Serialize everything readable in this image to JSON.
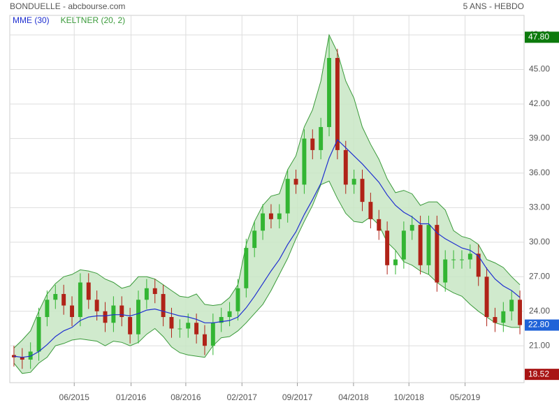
{
  "chart_data": {
    "type": "candlestick",
    "title": "BONDUELLE - abcbourse.com",
    "subtitle": "5 ANS - HEBDO",
    "xlim": [
      -0.5,
      61.5
    ],
    "xticks": [
      {
        "value": 7.27,
        "label": "06/2015"
      },
      {
        "value": 14.12,
        "label": "01/2016"
      },
      {
        "value": 20.72,
        "label": "08/2016"
      },
      {
        "value": 27.49,
        "label": "02/2017"
      },
      {
        "value": 34.17,
        "label": "09/2017"
      },
      {
        "value": 40.94,
        "label": "04/2018"
      },
      {
        "value": 47.62,
        "label": "10/2018"
      },
      {
        "value": 54.39,
        "label": "05/2019"
      }
    ],
    "ylim": [
      17.8,
      49.7
    ],
    "yticks": [
      {
        "value": 21,
        "label": "21.00"
      },
      {
        "value": 24,
        "label": "24.00"
      },
      {
        "value": 27,
        "label": "27.00"
      },
      {
        "value": 30,
        "label": "30.00"
      },
      {
        "value": 33,
        "label": "33.00"
      },
      {
        "value": 36,
        "label": "36.00"
      },
      {
        "value": 39,
        "label": "39.00"
      },
      {
        "value": 42,
        "label": "42.00"
      },
      {
        "value": 45,
        "label": "45.00"
      },
      {
        "value": 48,
        "label": "48.00"
      }
    ],
    "grid": true,
    "up_color": "#33b533",
    "down_color": "#b02318",
    "open": [
      20.2,
      20.0,
      19.8,
      20.5,
      23.5,
      25.0,
      25.5,
      24.5,
      23.5,
      26.5,
      25.0,
      24.0,
      23.0,
      24.5,
      23.5,
      22.0,
      25.0,
      26.0,
      25.5,
      23.5,
      22.5,
      22.5,
      23.0,
      22.0,
      21.0,
      23.0,
      23.5,
      24.0,
      26.0,
      29.5,
      31.0,
      32.5,
      32.0,
      32.5,
      35.5,
      35.0,
      39.0,
      38.0,
      40.0,
      46.0,
      38.0,
      35.0,
      35.5,
      33.5,
      32.0,
      31.0,
      28.0,
      28.5,
      31.0,
      31.5,
      28.0,
      31.5,
      26.5,
      28.5,
      28.5,
      28.5,
      29.0,
      27.0,
      23.5,
      23.0,
      24.0,
      25.0
    ],
    "high": [
      21.0,
      20.8,
      21.3,
      24.3,
      25.8,
      26.3,
      26.3,
      25.3,
      27.3,
      27.3,
      25.8,
      24.8,
      25.3,
      25.3,
      24.3,
      25.8,
      26.8,
      26.8,
      26.3,
      24.3,
      23.3,
      23.8,
      23.8,
      22.8,
      23.8,
      24.3,
      24.8,
      26.8,
      30.3,
      31.8,
      33.3,
      33.3,
      33.3,
      36.3,
      36.3,
      39.8,
      39.8,
      40.8,
      47.8,
      46.8,
      38.8,
      36.3,
      36.3,
      34.3,
      32.8,
      31.8,
      29.3,
      31.8,
      32.3,
      32.3,
      32.3,
      32.3,
      29.3,
      29.3,
      29.3,
      29.8,
      29.8,
      27.8,
      24.3,
      24.8,
      25.8,
      25.8
    ],
    "low": [
      19.2,
      19.0,
      19.0,
      19.7,
      22.7,
      24.2,
      23.7,
      22.7,
      22.7,
      24.2,
      23.2,
      22.2,
      22.2,
      22.7,
      21.2,
      21.2,
      24.2,
      24.7,
      22.7,
      21.7,
      21.7,
      21.7,
      21.2,
      20.2,
      20.2,
      22.2,
      22.7,
      23.2,
      25.2,
      28.7,
      30.2,
      31.2,
      31.2,
      31.7,
      34.2,
      34.2,
      37.2,
      37.2,
      39.2,
      37.2,
      34.2,
      34.2,
      32.7,
      31.2,
      30.2,
      27.2,
      27.2,
      27.7,
      30.2,
      27.2,
      27.2,
      25.7,
      25.7,
      27.7,
      27.7,
      27.7,
      26.2,
      22.7,
      22.2,
      22.2,
      23.2,
      22.0
    ],
    "close": [
      20.0,
      19.8,
      20.5,
      23.5,
      25.0,
      25.5,
      24.5,
      23.5,
      26.5,
      25.0,
      24.0,
      23.0,
      24.5,
      23.5,
      22.0,
      25.0,
      26.0,
      25.5,
      23.5,
      22.5,
      22.5,
      23.0,
      22.0,
      21.0,
      23.0,
      23.5,
      24.0,
      26.0,
      29.5,
      31.0,
      32.5,
      32.0,
      32.5,
      35.5,
      35.0,
      39.0,
      38.0,
      40.0,
      46.0,
      38.0,
      35.0,
      35.5,
      33.5,
      32.0,
      31.0,
      28.0,
      28.5,
      31.0,
      31.5,
      28.0,
      31.5,
      26.5,
      28.5,
      28.5,
      28.5,
      29.0,
      27.0,
      23.5,
      23.0,
      24.0,
      25.0,
      22.8
    ],
    "series": [
      {
        "name": "MME (30)",
        "color": "#1f2fd0",
        "values": [
          20.1,
          20.0,
          20.1,
          20.5,
          21.1,
          21.8,
          22.3,
          22.6,
          23.2,
          23.5,
          23.6,
          23.6,
          23.7,
          23.7,
          23.6,
          23.8,
          24.1,
          24.2,
          24.0,
          23.8,
          23.6,
          23.5,
          23.3,
          23.0,
          23.0,
          23.1,
          23.2,
          23.5,
          24.3,
          25.3,
          26.4,
          27.5,
          28.5,
          29.8,
          30.9,
          32.4,
          33.7,
          35.1,
          37.3,
          38.9,
          38.2,
          37.5,
          36.8,
          36.0,
          35.2,
          34.1,
          33.2,
          32.6,
          32.2,
          31.6,
          31.6,
          30.8,
          30.3,
          29.9,
          29.5,
          29.3,
          28.8,
          27.7,
          26.8,
          26.2,
          25.8,
          25.2
        ]
      },
      {
        "name": "KELTNER (20, 2)",
        "color": "#3a9a3a",
        "fill": "#c8e6c4",
        "upper": [
          20.8,
          21.5,
          22.3,
          24.0,
          25.5,
          26.4,
          27.0,
          27.2,
          27.6,
          27.5,
          27.3,
          26.8,
          26.5,
          26.0,
          26.2,
          27.0,
          27.0,
          26.8,
          26.3,
          25.8,
          25.3,
          25.2,
          25.5,
          24.6,
          24.5,
          24.6,
          25.2,
          26.3,
          29.8,
          31.8,
          33.2,
          34.0,
          34.2,
          36.3,
          37.5,
          40.0,
          41.5,
          44.0,
          48.0,
          46.5,
          44.0,
          42.5,
          40.0,
          38.5,
          37.2,
          35.5,
          34.3,
          34.5,
          34.2,
          33.2,
          33.5,
          33.5,
          32.8,
          31.0,
          30.5,
          30.3,
          29.8,
          28.5,
          28.2,
          27.8,
          27.0,
          26.3
        ],
        "lower": [
          19.5,
          18.6,
          18.7,
          19.5,
          20.0,
          21.0,
          21.2,
          21.5,
          21.6,
          21.5,
          21.4,
          21.0,
          21.4,
          21.3,
          21.0,
          21.3,
          22.0,
          22.5,
          21.8,
          20.9,
          20.4,
          20.2,
          20.1,
          20.0,
          21.0,
          21.7,
          21.8,
          22.3,
          23.0,
          23.8,
          24.6,
          25.8,
          27.2,
          28.6,
          30.3,
          31.8,
          33.2,
          35.0,
          35.3,
          33.8,
          32.5,
          31.8,
          31.7,
          32.2,
          31.5,
          30.0,
          29.3,
          28.3,
          28.0,
          27.5,
          27.2,
          26.5,
          26.0,
          25.6,
          25.3,
          24.6,
          24.0,
          23.5,
          23.0,
          22.8,
          22.6,
          22.6
        ]
      }
    ],
    "badges": [
      {
        "value": 47.8,
        "label": "47.80",
        "color": "#0d7a0d"
      },
      {
        "value": 22.8,
        "label": "22.80",
        "color": "#1f62d8"
      },
      {
        "value": 18.52,
        "label": "18.52",
        "color": "#a81414"
      }
    ]
  }
}
